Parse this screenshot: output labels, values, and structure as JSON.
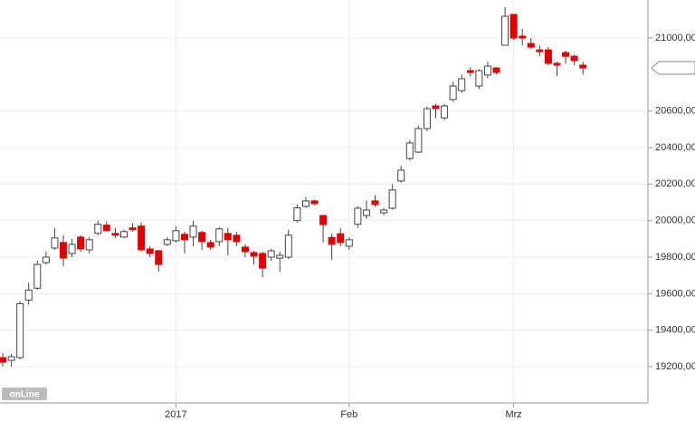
{
  "chart_data": {
    "type": "candlestick",
    "categories": [
      null,
      null,
      null,
      null,
      null,
      null,
      null,
      null,
      null,
      null,
      null,
      null,
      null,
      null,
      null,
      null,
      null,
      null,
      null,
      null,
      "2017",
      null,
      null,
      null,
      null,
      null,
      null,
      null,
      null,
      null,
      null,
      null,
      null,
      null,
      null,
      null,
      null,
      null,
      null,
      null,
      "Feb",
      null,
      null,
      null,
      null,
      null,
      null,
      null,
      null,
      null,
      null,
      null,
      null,
      null,
      null,
      null,
      null,
      null,
      null,
      "Mrz",
      null,
      null,
      null,
      null,
      null,
      null,
      null,
      null
    ],
    "open": [
      19250,
      19235,
      19250,
      19565,
      19630,
      19770,
      19850,
      19880,
      19820,
      19910,
      19840,
      19930,
      19975,
      19930,
      19910,
      19960,
      19970,
      19845,
      19835,
      19870,
      19890,
      19925,
      19910,
      19935,
      19880,
      19885,
      19930,
      19920,
      19855,
      19825,
      19820,
      19800,
      19795,
      19800,
      20000,
      20078,
      20108,
      20028,
      19908,
      19928,
      19860,
      19980,
      20028,
      20108,
      20043,
      20068,
      20217,
      20340,
      20375,
      20504,
      20628,
      20563,
      20663,
      20712,
      20821,
      20737,
      20797,
      20836,
      20960,
      21129,
      21010,
      20970,
      20935,
      20935,
      20861,
      20920,
      20900,
      20851
    ],
    "high": [
      19275,
      19270,
      19560,
      19660,
      19780,
      19830,
      19960,
      19920,
      19900,
      19920,
      19910,
      20000,
      19995,
      19960,
      19950,
      19985,
      19990,
      19860,
      19840,
      19910,
      19970,
      19940,
      20000,
      19945,
      19895,
      19965,
      19960,
      19940,
      19870,
      19835,
      19830,
      19845,
      19830,
      19950,
      20090,
      20130,
      20115,
      20030,
      19930,
      19960,
      19910,
      20080,
      20110,
      20140,
      20070,
      20200,
      20300,
      20440,
      20520,
      20625,
      20640,
      20640,
      20760,
      20800,
      20840,
      20830,
      20870,
      20840,
      21170,
      21130,
      21050,
      21000,
      20960,
      20950,
      20870,
      20930,
      20910,
      20870
    ],
    "low": [
      19200,
      19200,
      19240,
      19540,
      19620,
      19760,
      19840,
      19750,
      19800,
      19830,
      19820,
      19920,
      19940,
      19905,
      19905,
      19940,
      19830,
      19800,
      19720,
      19860,
      19880,
      19820,
      19860,
      19840,
      19840,
      19860,
      19810,
      19860,
      19800,
      19760,
      19690,
      19780,
      19720,
      19790,
      19990,
      20070,
      20085,
      19880,
      19785,
      19860,
      19840,
      19960,
      20010,
      20075,
      20030,
      20060,
      20208,
      20330,
      20370,
      20490,
      20560,
      20550,
      20650,
      20700,
      20790,
      20720,
      20780,
      20800,
      20960,
      20990,
      20960,
      20940,
      20900,
      20850,
      20790,
      20860,
      20850,
      20800
    ],
    "close": [
      19225,
      19255,
      19545,
      19620,
      19760,
      19800,
      19905,
      19795,
      19870,
      19845,
      19895,
      19980,
      19945,
      19920,
      19940,
      19950,
      19840,
      19820,
      19760,
      19895,
      19945,
      19895,
      19970,
      19885,
      19855,
      19955,
      19895,
      19885,
      19830,
      19805,
      19740,
      19835,
      19810,
      19920,
      20070,
      20108,
      20093,
      19978,
      19870,
      19880,
      19895,
      20068,
      20058,
      20088,
      20058,
      20168,
      20276,
      20425,
      20504,
      20613,
      20613,
      20628,
      20737,
      20777,
      20811,
      20821,
      20846,
      20811,
      21119,
      21000,
      21000,
      20950,
      20925,
      20861,
      20851,
      20900,
      20876,
      20836
    ],
    "up_color": "#ffffff",
    "down_color": "#e00000",
    "ylim": [
      19002,
      21208
    ],
    "yticks": [
      {
        "value": 19200,
        "label": "19200,00"
      },
      {
        "value": 19400,
        "label": "19400,00"
      },
      {
        "value": 19600,
        "label": "19600,00"
      },
      {
        "value": 19800,
        "label": "19800,00"
      },
      {
        "value": 20000,
        "label": "20000,00"
      },
      {
        "value": 20200,
        "label": "20200,00"
      },
      {
        "value": 20400,
        "label": "20400,00"
      },
      {
        "value": 20600,
        "label": "20600,00"
      },
      {
        "value": 21000,
        "label": "21000,00"
      }
    ],
    "grid": true,
    "logo": "onLine"
  }
}
